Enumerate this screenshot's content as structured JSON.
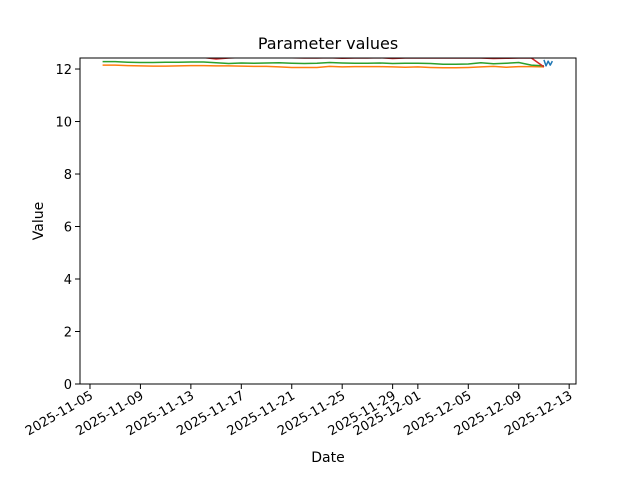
{
  "chart_data": {
    "type": "line",
    "title": "Parameter values",
    "x_label": "Date",
    "y_label": "Value",
    "xlim": [
      "2025-11-04T05:00",
      "2025-12-13T13:00"
    ],
    "xticks": [
      "2025-11-05",
      "2025-11-09",
      "2025-11-13",
      "2025-11-17",
      "2025-11-21",
      "2025-11-25",
      "2025-11-29",
      "2025-12-01",
      "2025-12-05",
      "2025-12-09",
      "2025-12-13"
    ],
    "ylim": [
      0,
      12.42
    ],
    "yticks": [
      0,
      2,
      4,
      6,
      8,
      10,
      12
    ],
    "series": [
      {
        "color": "#1f77b4",
        "x": [
          "2025-12-11T00:00",
          "2025-12-11T04:00",
          "2025-12-11T08:00",
          "2025-12-11T12:00",
          "2025-12-11T16:00"
        ],
        "values": [
          12.35,
          12.12,
          12.3,
          12.15,
          12.3
        ]
      },
      {
        "color": "#ff7f0e",
        "x": [
          "2025-11-06",
          "2025-11-07",
          "2025-11-08",
          "2025-11-09",
          "2025-11-10",
          "2025-11-11",
          "2025-11-12",
          "2025-11-13",
          "2025-11-14",
          "2025-11-15",
          "2025-11-16",
          "2025-11-17",
          "2025-11-18",
          "2025-11-19",
          "2025-11-20",
          "2025-11-21",
          "2025-11-22",
          "2025-11-23",
          "2025-11-24",
          "2025-11-25",
          "2025-11-26",
          "2025-11-27",
          "2025-11-28",
          "2025-11-29",
          "2025-11-30",
          "2025-12-01",
          "2025-12-02",
          "2025-12-03",
          "2025-12-04",
          "2025-12-05",
          "2025-12-06",
          "2025-12-07",
          "2025-12-08",
          "2025-12-09",
          "2025-12-10",
          "2025-12-11"
        ],
        "values": [
          12.15,
          12.15,
          12.13,
          12.12,
          12.11,
          12.11,
          12.12,
          12.13,
          12.13,
          12.12,
          12.12,
          12.11,
          12.1,
          12.1,
          12.08,
          12.06,
          12.06,
          12.06,
          12.1,
          12.08,
          12.09,
          12.09,
          12.09,
          12.08,
          12.07,
          12.08,
          12.06,
          12.05,
          12.05,
          12.06,
          12.08,
          12.1,
          12.07,
          12.09,
          12.09,
          12.08
        ]
      },
      {
        "color": "#2ca02c",
        "x": [
          "2025-11-06",
          "2025-11-07",
          "2025-11-08",
          "2025-11-09",
          "2025-11-10",
          "2025-11-11",
          "2025-11-12",
          "2025-11-13",
          "2025-11-14",
          "2025-11-15",
          "2025-11-16",
          "2025-11-17",
          "2025-11-18",
          "2025-11-19",
          "2025-11-20",
          "2025-11-21",
          "2025-11-22",
          "2025-11-23",
          "2025-11-24",
          "2025-11-25",
          "2025-11-26",
          "2025-11-27",
          "2025-11-28",
          "2025-11-29",
          "2025-11-30",
          "2025-12-01",
          "2025-12-02",
          "2025-12-03",
          "2025-12-04",
          "2025-12-05",
          "2025-12-06",
          "2025-12-07",
          "2025-12-08",
          "2025-12-09",
          "2025-12-10",
          "2025-12-11"
        ],
        "values": [
          12.28,
          12.28,
          12.26,
          12.25,
          12.25,
          12.26,
          12.26,
          12.27,
          12.27,
          12.24,
          12.21,
          12.23,
          12.22,
          12.23,
          12.24,
          12.22,
          12.21,
          12.22,
          12.25,
          12.23,
          12.22,
          12.22,
          12.23,
          12.21,
          12.22,
          12.22,
          12.21,
          12.18,
          12.18,
          12.19,
          12.24,
          12.2,
          12.22,
          12.25,
          12.15,
          12.12
        ]
      },
      {
        "color": "#d62728",
        "x": [
          "2025-11-06",
          "2025-11-07",
          "2025-11-08",
          "2025-11-09",
          "2025-11-10",
          "2025-11-11",
          "2025-11-12",
          "2025-11-13",
          "2025-11-14",
          "2025-11-15",
          "2025-11-16",
          "2025-11-17",
          "2025-11-18",
          "2025-11-19",
          "2025-11-20",
          "2025-11-21",
          "2025-11-22",
          "2025-11-23",
          "2025-11-24",
          "2025-11-25",
          "2025-11-26",
          "2025-11-27",
          "2025-11-28",
          "2025-11-29",
          "2025-11-30",
          "2025-12-01",
          "2025-12-02",
          "2025-12-03",
          "2025-12-04",
          "2025-12-05",
          "2025-12-06",
          "2025-12-07",
          "2025-12-08",
          "2025-12-09",
          "2025-12-10",
          "2025-12-11"
        ],
        "values": [
          12.45,
          12.45,
          12.44,
          12.44,
          12.45,
          12.45,
          12.44,
          12.44,
          12.44,
          12.38,
          12.42,
          12.44,
          12.45,
          12.44,
          12.44,
          12.43,
          12.42,
          12.42,
          12.43,
          12.41,
          12.42,
          12.42,
          12.43,
          12.4,
          12.42,
          12.42,
          12.42,
          12.42,
          12.42,
          12.42,
          12.42,
          12.4,
          12.41,
          12.42,
          12.42,
          12.08
        ]
      }
    ]
  }
}
